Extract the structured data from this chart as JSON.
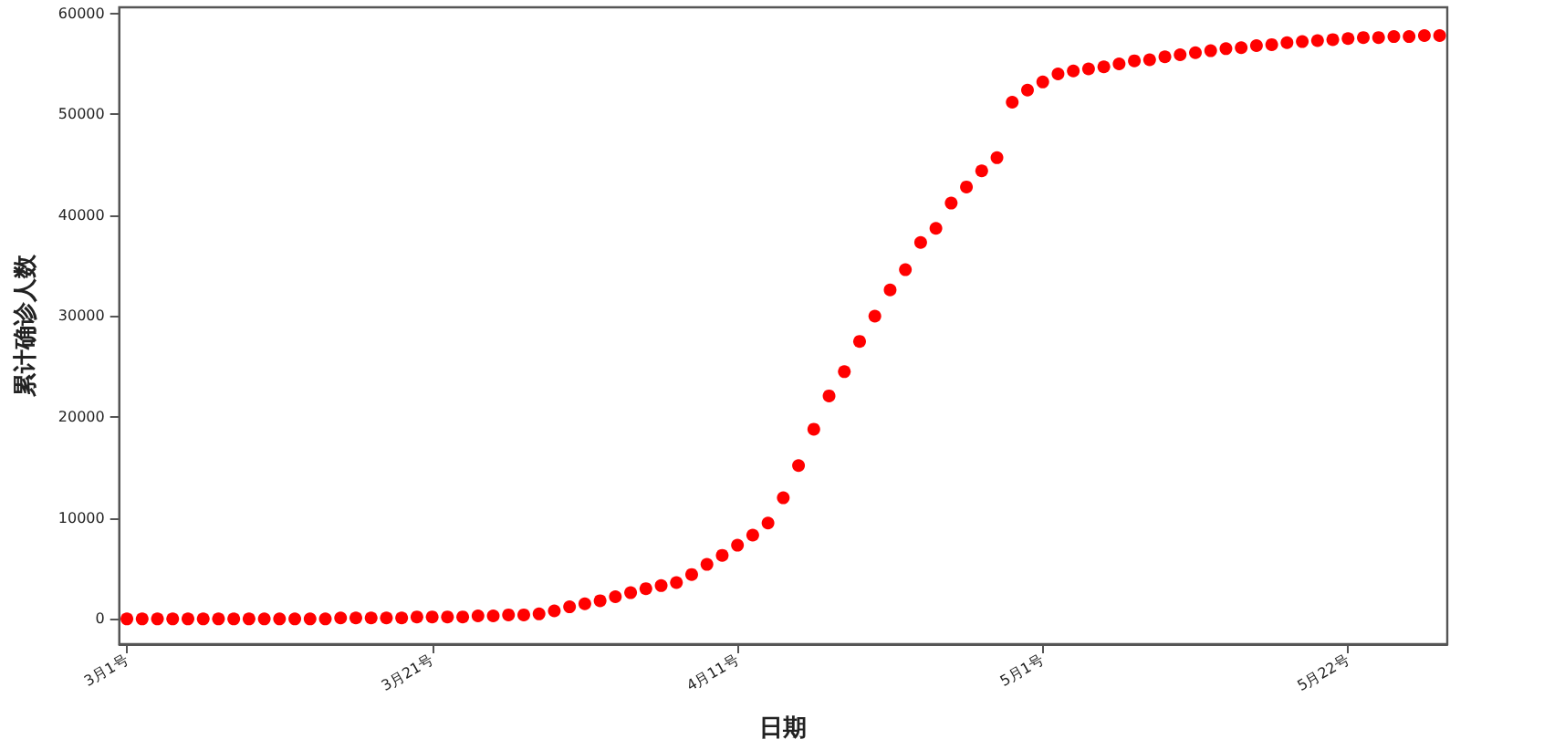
{
  "chart_data": {
    "type": "scatter",
    "xlabel": "日期",
    "ylabel": "累计确诊人数",
    "categories": [
      "3月1号",
      null,
      null,
      null,
      null,
      null,
      null,
      null,
      null,
      null,
      null,
      null,
      null,
      null,
      null,
      null,
      null,
      null,
      null,
      null,
      "3月21号",
      null,
      null,
      null,
      null,
      null,
      null,
      null,
      null,
      null,
      null,
      null,
      null,
      null,
      null,
      null,
      null,
      null,
      null,
      null,
      "4月11号",
      null,
      null,
      null,
      null,
      null,
      null,
      null,
      null,
      null,
      null,
      null,
      null,
      null,
      null,
      null,
      null,
      null,
      null,
      null,
      "5月1号",
      null,
      null,
      null,
      null,
      null,
      null,
      null,
      null,
      null,
      null,
      null,
      null,
      null,
      null,
      null,
      null,
      null,
      null,
      null,
      "5月22号",
      null,
      null,
      null,
      null,
      null,
      null
    ],
    "series": [
      {
        "color": "#ff0000",
        "values": [
          0,
          0,
          0,
          0,
          0,
          0,
          0,
          0,
          0,
          0,
          0,
          0,
          0,
          0,
          100,
          100,
          100,
          100,
          100,
          200,
          200,
          200,
          200,
          300,
          300,
          400,
          400,
          500,
          800,
          1200,
          1500,
          1800,
          2200,
          2600,
          3000,
          3300,
          3600,
          4400,
          5400,
          6300,
          7300,
          8300,
          9500,
          12000,
          15200,
          18800,
          22100,
          24500,
          27500,
          30000,
          32600,
          34600,
          37300,
          38700,
          41200,
          42800,
          44400,
          45700,
          51200,
          52400,
          53200,
          54000,
          54300,
          54500,
          54700,
          55000,
          55300,
          55400,
          55700,
          55900,
          56100,
          56300,
          56500,
          56600,
          56800,
          56900,
          57100,
          57200,
          57300,
          57400,
          57500,
          57600,
          57600,
          57700,
          57700,
          57800,
          57800
        ]
      }
    ],
    "ylim": [
      -2500,
      60600
    ],
    "yticks": [
      0,
      10000,
      20000,
      30000,
      40000,
      50000,
      60000
    ],
    "grid": false,
    "marker": "circle"
  }
}
